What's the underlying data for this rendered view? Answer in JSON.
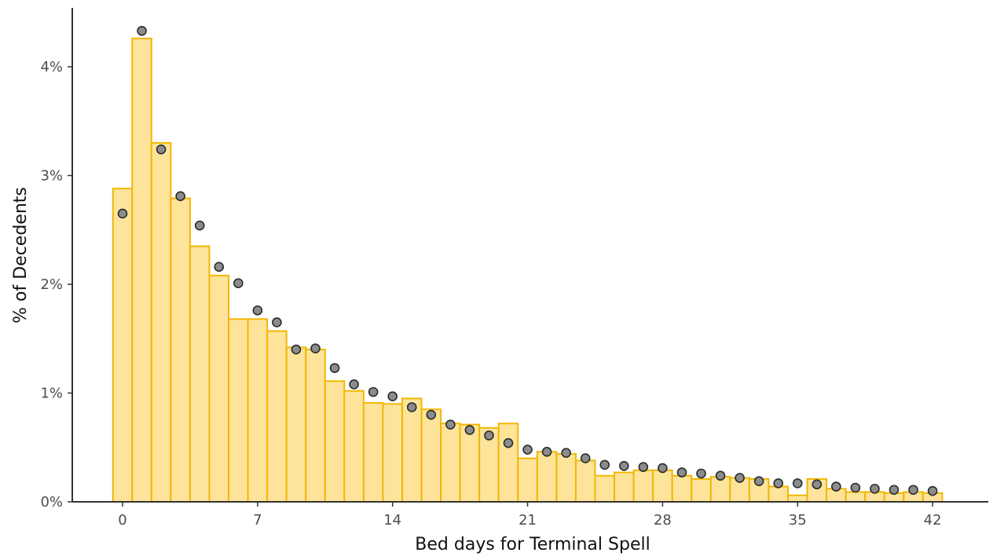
{
  "chart_data": {
    "type": "bar",
    "title": "",
    "xlabel": "Bed days for Terminal Spell",
    "ylabel": "% of Decedents",
    "x_ticks": [
      0,
      7,
      14,
      21,
      28,
      35,
      42
    ],
    "x_tick_labels": [
      "0",
      "7",
      "14",
      "21",
      "28",
      "35",
      "42"
    ],
    "y_ticks": [
      0,
      1,
      2,
      3,
      4
    ],
    "y_tick_labels": [
      "0%",
      "1%",
      "2%",
      "3%",
      "4%"
    ],
    "xlim": [
      -0.5,
      42.5
    ],
    "ylim": [
      0,
      4.4
    ],
    "grid": false,
    "legend": "none",
    "colors": {
      "bar_fill": "#fde49a",
      "bar_stroke": "#f2b705",
      "point_fill": "#8c8c8c",
      "point_stroke": "#2b2b2b",
      "axis": "#333333"
    },
    "categories": [
      0,
      1,
      2,
      3,
      4,
      5,
      6,
      7,
      8,
      9,
      10,
      11,
      12,
      13,
      14,
      15,
      16,
      17,
      18,
      19,
      20,
      21,
      22,
      23,
      24,
      25,
      26,
      27,
      28,
      29,
      30,
      31,
      32,
      33,
      34,
      35,
      36,
      37,
      38,
      39,
      40,
      41,
      42
    ],
    "series": [
      {
        "kind": "bars",
        "values": [
          2.88,
          4.26,
          3.3,
          2.79,
          2.35,
          2.08,
          1.68,
          1.68,
          1.57,
          1.42,
          1.4,
          1.11,
          1.02,
          0.91,
          0.9,
          0.95,
          0.85,
          0.72,
          0.71,
          0.68,
          0.72,
          0.4,
          0.46,
          0.44,
          0.38,
          0.24,
          0.27,
          0.29,
          0.29,
          0.24,
          0.21,
          0.23,
          0.22,
          0.21,
          0.14,
          0.06,
          0.21,
          0.12,
          0.09,
          0.09,
          0.08,
          0.09,
          0.08
        ]
      },
      {
        "kind": "points",
        "values": [
          2.65,
          4.33,
          3.24,
          2.81,
          2.54,
          2.16,
          2.01,
          1.76,
          1.65,
          1.4,
          1.41,
          1.23,
          1.08,
          1.01,
          0.97,
          0.87,
          0.8,
          0.71,
          0.66,
          0.61,
          0.54,
          0.48,
          0.46,
          0.45,
          0.4,
          0.34,
          0.33,
          0.32,
          0.31,
          0.27,
          0.26,
          0.24,
          0.22,
          0.19,
          0.17,
          0.17,
          0.16,
          0.14,
          0.13,
          0.12,
          0.11,
          0.11,
          0.1
        ]
      }
    ]
  }
}
